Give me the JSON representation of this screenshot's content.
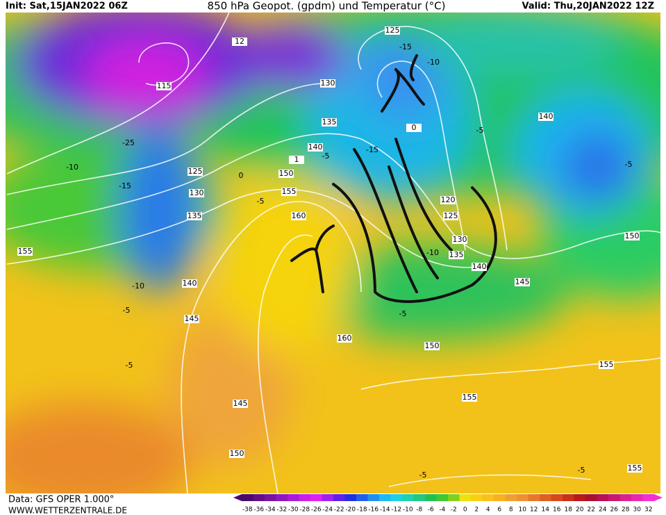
{
  "header": {
    "init": "Init: Sat,15JAN2022 06Z",
    "title": "850 hPa Geopot. (gpdm) und Temperatur (°C)",
    "valid": "Valid: Thu,20JAN2022 12Z"
  },
  "footer": {
    "data": "Data: GFS OPER 1.000°",
    "site": "WWW.WETTERZENTRALE.DE"
  },
  "scale": {
    "labels": [
      "-38",
      "-36",
      "-34",
      "-32",
      "-30",
      "-28",
      "-26",
      "-24",
      "-22",
      "-20",
      "-18",
      "-16",
      "-14",
      "-12",
      "-10",
      "-8",
      "-6",
      "-4",
      "-2",
      "0",
      "2",
      "4",
      "6",
      "8",
      "10",
      "12",
      "14",
      "16",
      "18",
      "20",
      "22",
      "24",
      "26",
      "28",
      "30",
      "32"
    ]
  },
  "contour_labels": {
    "geopotential": [
      "125",
      "115",
      "130",
      "135",
      "140",
      "125",
      "150",
      "130",
      "155",
      "135",
      "160",
      "155",
      "140",
      "145",
      "160",
      "150",
      "145",
      "150",
      "155",
      "155",
      "155",
      "150",
      "145",
      "140",
      "135",
      "130",
      "125",
      "120",
      "140",
      "0",
      "1",
      "12"
    ],
    "temperature": [
      "-15",
      "-10",
      "-5",
      "-25",
      "-10",
      "-15",
      "-15",
      "-5",
      "0",
      "-5",
      "-10",
      "-5",
      "-5",
      "-5",
      "-10",
      "-5",
      "-5",
      "-5"
    ]
  }
}
